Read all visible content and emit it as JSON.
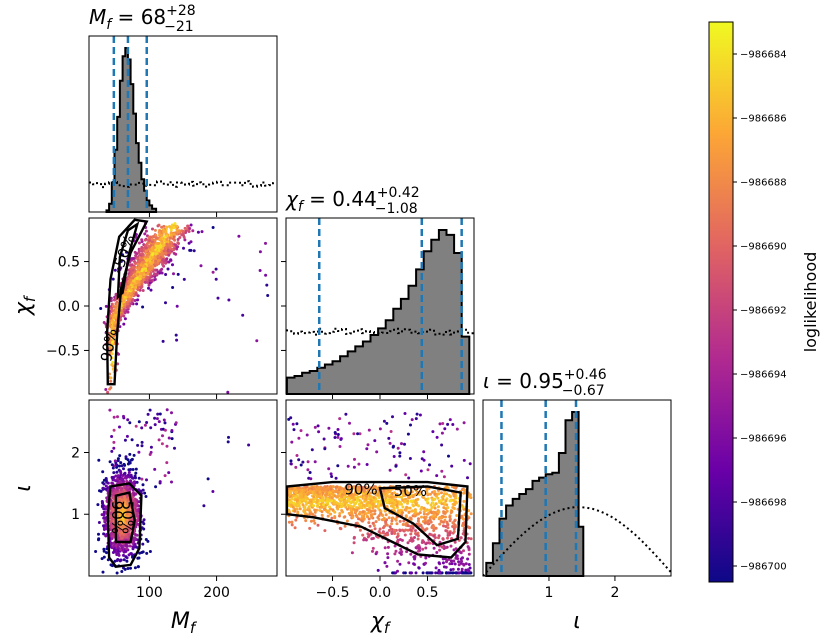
{
  "chart_data": {
    "type": "corner",
    "parameters": [
      {
        "symbol": "M",
        "subscript": "f",
        "range": [
          10,
          290
        ],
        "ticks": [
          100,
          200
        ],
        "tick_labels": [
          "100",
          "200"
        ],
        "title": {
          "median": "68",
          "plus": "+28",
          "minus": "−21"
        },
        "quantiles": [
          47,
          68,
          96
        ]
      },
      {
        "symbol": "χ",
        "subscript": "f",
        "range": [
          -0.99,
          0.99
        ],
        "ticks": [
          -0.5,
          0.0,
          0.5
        ],
        "tick_labels": [
          "−0.5",
          "0.0",
          "0.5"
        ],
        "title": {
          "median": "0.44",
          "plus": "+0.42",
          "minus": "−1.08"
        },
        "quantiles": [
          -0.64,
          0.44,
          0.86
        ]
      },
      {
        "symbol": "ι",
        "subscript": "",
        "range": [
          0,
          2.85
        ],
        "ticks": [
          1,
          2
        ],
        "tick_labels": [
          "1",
          "2"
        ],
        "title": {
          "median": "0.95",
          "plus": "+0.46",
          "minus": "−0.67"
        },
        "quantiles": [
          0.28,
          0.95,
          1.41
        ]
      }
    ],
    "y_axes": [
      {
        "param": 1,
        "ticks": [
          -0.5,
          0.0,
          0.5
        ],
        "tick_labels": [
          "−0.5",
          "0.0",
          "0.5"
        ]
      },
      {
        "param": 2,
        "ticks": [
          1,
          2
        ],
        "tick_labels": [
          "1",
          "2"
        ]
      }
    ],
    "histograms": [
      {
        "param": 0,
        "posterior_bins": [
          [
            36,
            40,
            0.01
          ],
          [
            40,
            44,
            0.05
          ],
          [
            44,
            48,
            0.18
          ],
          [
            48,
            52,
            0.38
          ],
          [
            52,
            56,
            0.58
          ],
          [
            56,
            60,
            0.8
          ],
          [
            60,
            64,
            0.95
          ],
          [
            64,
            68,
            1.0
          ],
          [
            68,
            72,
            0.93
          ],
          [
            72,
            76,
            0.78
          ],
          [
            76,
            80,
            0.6
          ],
          [
            80,
            84,
            0.42
          ],
          [
            84,
            88,
            0.3
          ],
          [
            88,
            92,
            0.2
          ],
          [
            92,
            96,
            0.13
          ],
          [
            96,
            100,
            0.07
          ],
          [
            100,
            104,
            0.04
          ],
          [
            104,
            110,
            0.02
          ]
        ],
        "prior_level": 0.17
      },
      {
        "param": 1,
        "posterior_bins": [
          [
            -0.98,
            -0.9,
            0.1
          ],
          [
            -0.9,
            -0.82,
            0.11
          ],
          [
            -0.82,
            -0.74,
            0.13
          ],
          [
            -0.74,
            -0.66,
            0.14
          ],
          [
            -0.66,
            -0.58,
            0.16
          ],
          [
            -0.58,
            -0.5,
            0.18
          ],
          [
            -0.5,
            -0.42,
            0.2
          ],
          [
            -0.42,
            -0.34,
            0.23
          ],
          [
            -0.34,
            -0.26,
            0.26
          ],
          [
            -0.26,
            -0.18,
            0.29
          ],
          [
            -0.18,
            -0.1,
            0.32
          ],
          [
            -0.1,
            -0.02,
            0.36
          ],
          [
            -0.02,
            0.06,
            0.4
          ],
          [
            0.06,
            0.14,
            0.45
          ],
          [
            0.14,
            0.22,
            0.52
          ],
          [
            0.22,
            0.3,
            0.58
          ],
          [
            0.3,
            0.38,
            0.66
          ],
          [
            0.38,
            0.46,
            0.76
          ],
          [
            0.46,
            0.54,
            0.87
          ],
          [
            0.54,
            0.62,
            0.94
          ],
          [
            0.62,
            0.7,
            1.0
          ],
          [
            0.7,
            0.78,
            0.97
          ],
          [
            0.78,
            0.86,
            0.86
          ],
          [
            0.86,
            0.94,
            0.35
          ]
        ],
        "prior_level": 0.38
      },
      {
        "param": 2,
        "posterior_bins": [
          [
            0.05,
            0.15,
            0.08
          ],
          [
            0.15,
            0.25,
            0.2
          ],
          [
            0.25,
            0.35,
            0.35
          ],
          [
            0.35,
            0.45,
            0.43
          ],
          [
            0.45,
            0.55,
            0.47
          ],
          [
            0.55,
            0.65,
            0.5
          ],
          [
            0.65,
            0.75,
            0.53
          ],
          [
            0.75,
            0.85,
            0.58
          ],
          [
            0.85,
            0.95,
            0.6
          ],
          [
            0.95,
            1.05,
            0.62
          ],
          [
            1.05,
            1.15,
            0.63
          ],
          [
            1.15,
            1.25,
            0.75
          ],
          [
            1.25,
            1.35,
            0.95
          ],
          [
            1.35,
            1.45,
            1.0
          ],
          [
            1.45,
            1.52,
            0.3
          ]
        ],
        "prior_peak": 0.42
      },
      {
        "note": "prior curves drawn as dotted lines"
      }
    ],
    "contour_labels": [
      "90%",
      "50%"
    ],
    "colorbar": {
      "label": "loglikelihood",
      "range": [
        -986700.5,
        -986683.0
      ],
      "ticks": [
        -986684,
        -986686,
        -986688,
        -986690,
        -986692,
        -986694,
        -986696,
        -986698,
        -986700
      ],
      "tick_labels": [
        "−986684",
        "−986686",
        "−986688",
        "−986690",
        "−986692",
        "−986694",
        "−986696",
        "−986698",
        "−986700"
      ],
      "colormap": [
        "#0d0887",
        "#6a00a8",
        "#b12a90",
        "#e16462",
        "#fca636",
        "#f0f921"
      ]
    },
    "colors": {
      "quantile_line": "#1f77b4",
      "hist_fill": "#808080",
      "contour": "#000000"
    }
  }
}
